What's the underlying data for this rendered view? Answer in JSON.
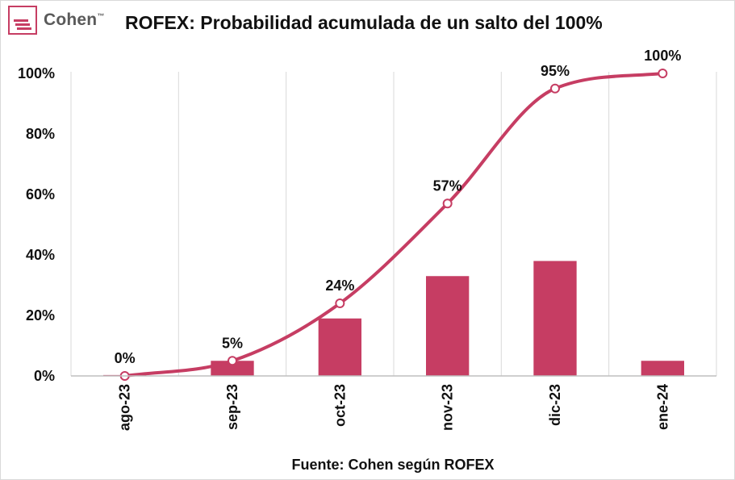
{
  "brand": {
    "name": "Cohen",
    "tm": "™",
    "accent": "#C63D63",
    "text_color": "#5A5A5A"
  },
  "chart_data": {
    "type": "bar+line",
    "title": "ROFEX: Probabilidad acumulada de un salto del 100%",
    "categories": [
      "ago-23",
      "sep-23",
      "oct-23",
      "nov-23",
      "dic-23",
      "ene-24"
    ],
    "series": [
      {
        "type": "bar",
        "values": [
          0.3,
          5,
          19,
          33,
          38,
          5
        ],
        "color": "#C63D63"
      },
      {
        "type": "line",
        "values": [
          0,
          5,
          24,
          57,
          95,
          100
        ],
        "data_labels": [
          "0%",
          "5%",
          "24%",
          "57%",
          "95%",
          "100%"
        ],
        "color": "#C63D63"
      }
    ],
    "ylim": [
      0,
      100
    ],
    "yticks": [
      "0%",
      "20%",
      "40%",
      "60%",
      "80%",
      "100%"
    ],
    "grid": "vertical",
    "source": "Fuente: Cohen según ROFEX"
  }
}
